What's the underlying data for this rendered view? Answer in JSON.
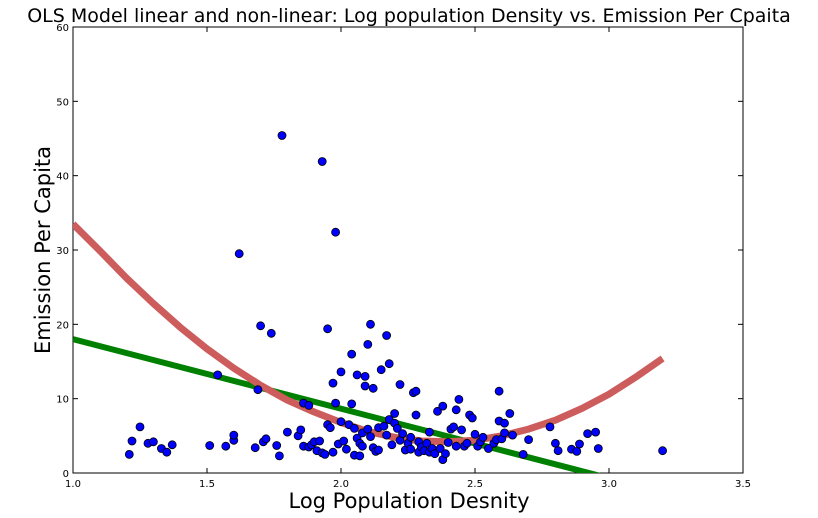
{
  "chart_data": {
    "type": "scatter",
    "title": "OLS Model linear and non-linear: Log population Density vs. Emission Per Cpaita",
    "xlabel": "Log Population Desnity",
    "ylabel": "Emission Per Capita",
    "xlim": [
      1.0,
      3.5
    ],
    "ylim": [
      0,
      60
    ],
    "xticks": [
      "1.0",
      "1.5",
      "2.0",
      "2.5",
      "3.0",
      "3.5"
    ],
    "yticks": [
      "0",
      "10",
      "20",
      "30",
      "40",
      "50",
      "60"
    ],
    "grid": false,
    "legend": "none",
    "series": [
      {
        "kind": "scatter",
        "color": "#0000ff",
        "points": [
          [
            1.21,
            2.5
          ],
          [
            1.22,
            4.3
          ],
          [
            1.25,
            6.2
          ],
          [
            1.28,
            4.0
          ],
          [
            1.3,
            4.2
          ],
          [
            1.33,
            3.3
          ],
          [
            1.35,
            2.8
          ],
          [
            1.37,
            3.8
          ],
          [
            1.51,
            3.7
          ],
          [
            1.54,
            13.2
          ],
          [
            1.57,
            3.6
          ],
          [
            1.6,
            4.4
          ],
          [
            1.6,
            5.1
          ],
          [
            1.62,
            29.5
          ],
          [
            1.68,
            3.4
          ],
          [
            1.69,
            11.2
          ],
          [
            1.7,
            19.8
          ],
          [
            1.71,
            4.2
          ],
          [
            1.72,
            4.6
          ],
          [
            1.74,
            18.8
          ],
          [
            1.76,
            3.7
          ],
          [
            1.77,
            2.3
          ],
          [
            1.78,
            45.4
          ],
          [
            1.8,
            5.5
          ],
          [
            1.84,
            5.0
          ],
          [
            1.85,
            5.8
          ],
          [
            1.86,
            9.4
          ],
          [
            1.86,
            3.6
          ],
          [
            1.88,
            9.1
          ],
          [
            1.88,
            3.5
          ],
          [
            1.89,
            3.8
          ],
          [
            1.9,
            4.2
          ],
          [
            1.91,
            3.0
          ],
          [
            1.92,
            4.3
          ],
          [
            1.93,
            41.9
          ],
          [
            1.93,
            2.7
          ],
          [
            1.94,
            2.5
          ],
          [
            1.95,
            19.4
          ],
          [
            1.95,
            6.5
          ],
          [
            1.96,
            6.1
          ],
          [
            1.97,
            12.1
          ],
          [
            1.97,
            2.8
          ],
          [
            1.98,
            32.4
          ],
          [
            1.98,
            9.4
          ],
          [
            1.99,
            3.9
          ],
          [
            2.0,
            13.6
          ],
          [
            2.0,
            6.9
          ],
          [
            2.01,
            4.3
          ],
          [
            2.02,
            3.2
          ],
          [
            2.03,
            6.5
          ],
          [
            2.04,
            9.3
          ],
          [
            2.04,
            16.0
          ],
          [
            2.05,
            6.0
          ],
          [
            2.05,
            2.4
          ],
          [
            2.06,
            4.7
          ],
          [
            2.06,
            13.2
          ],
          [
            2.07,
            2.3
          ],
          [
            2.07,
            4.0
          ],
          [
            2.08,
            5.4
          ],
          [
            2.08,
            3.6
          ],
          [
            2.09,
            13.0
          ],
          [
            2.09,
            11.7
          ],
          [
            2.1,
            17.3
          ],
          [
            2.1,
            5.9
          ],
          [
            2.11,
            20.0
          ],
          [
            2.11,
            4.9
          ],
          [
            2.12,
            3.4
          ],
          [
            2.12,
            11.4
          ],
          [
            2.13,
            2.9
          ],
          [
            2.14,
            6.1
          ],
          [
            2.14,
            3.1
          ],
          [
            2.15,
            13.9
          ],
          [
            2.16,
            6.3
          ],
          [
            2.17,
            18.5
          ],
          [
            2.17,
            5.1
          ],
          [
            2.18,
            14.7
          ],
          [
            2.18,
            7.2
          ],
          [
            2.19,
            3.8
          ],
          [
            2.2,
            8.0
          ],
          [
            2.2,
            6.7
          ],
          [
            2.21,
            6.0
          ],
          [
            2.22,
            11.9
          ],
          [
            2.22,
            4.4
          ],
          [
            2.23,
            5.3
          ],
          [
            2.24,
            3.1
          ],
          [
            2.25,
            4.0
          ],
          [
            2.26,
            3.2
          ],
          [
            2.26,
            4.8
          ],
          [
            2.27,
            10.8
          ],
          [
            2.28,
            11.0
          ],
          [
            2.28,
            7.8
          ],
          [
            2.29,
            2.8
          ],
          [
            2.29,
            4.2
          ],
          [
            2.3,
            3.5
          ],
          [
            2.31,
            3.0
          ],
          [
            2.32,
            4.0
          ],
          [
            2.33,
            2.8
          ],
          [
            2.33,
            5.5
          ],
          [
            2.34,
            3.3
          ],
          [
            2.35,
            2.6
          ],
          [
            2.36,
            8.3
          ],
          [
            2.37,
            3.3
          ],
          [
            2.38,
            9.0
          ],
          [
            2.38,
            1.8
          ],
          [
            2.39,
            2.6
          ],
          [
            2.4,
            4.1
          ],
          [
            2.41,
            5.9
          ],
          [
            2.42,
            6.2
          ],
          [
            2.43,
            3.6
          ],
          [
            2.43,
            8.5
          ],
          [
            2.44,
            9.9
          ],
          [
            2.45,
            5.8
          ],
          [
            2.46,
            3.6
          ],
          [
            2.47,
            4.0
          ],
          [
            2.48,
            7.8
          ],
          [
            2.49,
            7.4
          ],
          [
            2.5,
            5.2
          ],
          [
            2.51,
            3.6
          ],
          [
            2.52,
            4.2
          ],
          [
            2.53,
            4.8
          ],
          [
            2.55,
            3.3
          ],
          [
            2.57,
            4.0
          ],
          [
            2.58,
            4.5
          ],
          [
            2.59,
            7.0
          ],
          [
            2.59,
            11.0
          ],
          [
            2.6,
            4.6
          ],
          [
            2.61,
            5.4
          ],
          [
            2.61,
            6.7
          ],
          [
            2.63,
            8.0
          ],
          [
            2.64,
            5.1
          ],
          [
            2.68,
            2.5
          ],
          [
            2.7,
            4.5
          ],
          [
            2.78,
            6.2
          ],
          [
            2.8,
            4.0
          ],
          [
            2.81,
            3.0
          ],
          [
            2.86,
            3.2
          ],
          [
            2.88,
            2.9
          ],
          [
            2.89,
            3.9
          ],
          [
            2.92,
            5.3
          ],
          [
            2.95,
            5.5
          ],
          [
            2.96,
            3.3
          ],
          [
            3.2,
            3.0
          ]
        ]
      },
      {
        "kind": "line",
        "color": "#008000",
        "x": [
          1.0,
          3.0
        ],
        "y": [
          18.0,
          -0.7
        ]
      },
      {
        "kind": "curve",
        "color": "#cd5c5c",
        "x": [
          1.0,
          1.1,
          1.2,
          1.3,
          1.4,
          1.5,
          1.6,
          1.7,
          1.8,
          1.9,
          2.0,
          2.1,
          2.2,
          2.3,
          2.4,
          2.5,
          2.6,
          2.7,
          2.8,
          2.9,
          3.0,
          3.1,
          3.2
        ],
        "y": [
          33.5,
          29.9,
          26.2,
          22.8,
          19.6,
          16.7,
          14.1,
          11.8,
          9.8,
          8.2,
          6.8,
          5.6,
          4.8,
          4.3,
          4.2,
          4.4,
          5.0,
          5.9,
          7.1,
          8.7,
          10.6,
          12.9,
          15.4
        ]
      }
    ]
  }
}
